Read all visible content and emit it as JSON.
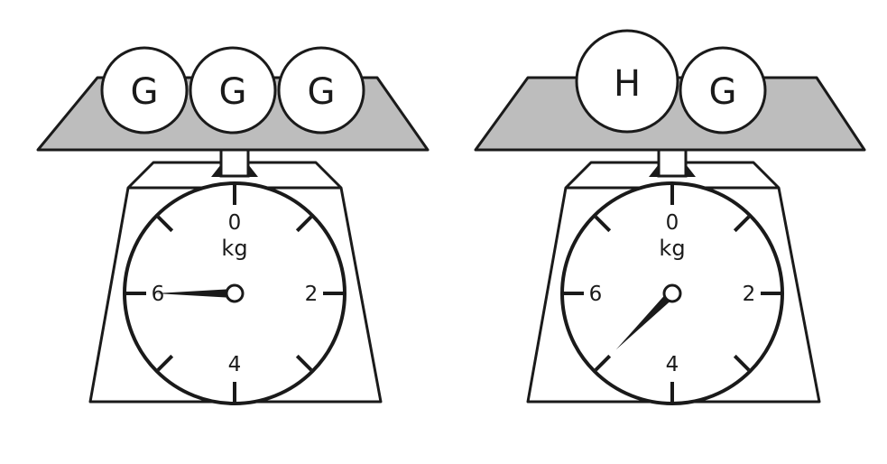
{
  "scales": [
    {
      "balls": [
        "G",
        "G",
        "G"
      ],
      "dial": {
        "ticks": [
          {
            "text": "0"
          },
          {
            "text": "2"
          },
          {
            "text": "4"
          },
          {
            "text": "6"
          }
        ],
        "unit": "kg",
        "reading_kg": 6
      }
    },
    {
      "balls": [
        "H",
        "G"
      ],
      "dial": {
        "ticks": [
          {
            "text": "0"
          },
          {
            "text": "2"
          },
          {
            "text": "4"
          },
          {
            "text": "6"
          }
        ],
        "unit": "kg",
        "reading_kg": 5
      }
    }
  ],
  "colors": {
    "pan": "#bdbdbd",
    "stroke": "#1a1a1a",
    "background": "#ffffff"
  }
}
